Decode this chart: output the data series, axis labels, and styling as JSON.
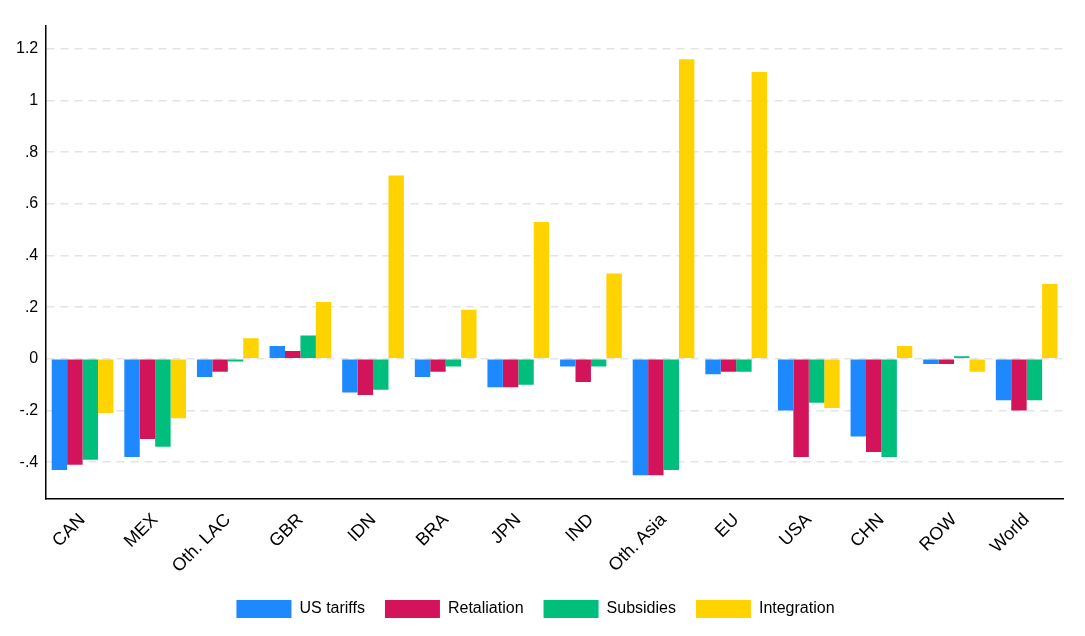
{
  "chart_data": {
    "type": "bar",
    "categories": [
      "CAN",
      "MEX",
      "Oth. LAC",
      "GBR",
      "IDN",
      "BRA",
      "JPN",
      "IND",
      "Oth. Asia",
      "EU",
      "USA",
      "CHN",
      "ROW",
      "World"
    ],
    "series": [
      {
        "name": "US tariffs",
        "color": "#1e88ff",
        "values": [
          -0.43,
          -0.38,
          -0.07,
          0.05,
          -0.13,
          -0.07,
          -0.11,
          -0.03,
          -0.45,
          -0.06,
          -0.2,
          -0.3,
          -0.02,
          -0.16
        ]
      },
      {
        "name": "Retaliation",
        "color": "#d4145a",
        "values": [
          -0.41,
          -0.31,
          -0.05,
          0.03,
          -0.14,
          -0.05,
          -0.11,
          -0.09,
          -0.45,
          -0.05,
          -0.38,
          -0.36,
          -0.02,
          -0.2
        ]
      },
      {
        "name": "Subsidies",
        "color": "#00bf7d",
        "values": [
          -0.39,
          -0.34,
          -0.01,
          0.09,
          -0.12,
          -0.03,
          -0.1,
          -0.03,
          -0.43,
          -0.05,
          -0.17,
          -0.38,
          0.01,
          -0.16
        ]
      },
      {
        "name": "Integration",
        "color": "#ffd300",
        "values": [
          -0.21,
          -0.23,
          0.08,
          0.22,
          0.71,
          0.19,
          0.53,
          0.33,
          1.16,
          1.11,
          -0.19,
          0.05,
          -0.05,
          0.29
        ]
      }
    ],
    "ylim": [
      -0.54,
      1.29
    ],
    "yticks": [
      {
        "value": -0.4,
        "label": "-.4"
      },
      {
        "value": -0.2,
        "label": "-.2"
      },
      0,
      {
        "value": 0.2,
        "label": ".2"
      },
      {
        "value": 0.4,
        "label": ".4"
      },
      {
        "value": 0.6,
        "label": ".6"
      },
      {
        "value": 0.8,
        "label": ".8"
      },
      1,
      1.2
    ],
    "grid": "y",
    "legend": "bottom"
  }
}
